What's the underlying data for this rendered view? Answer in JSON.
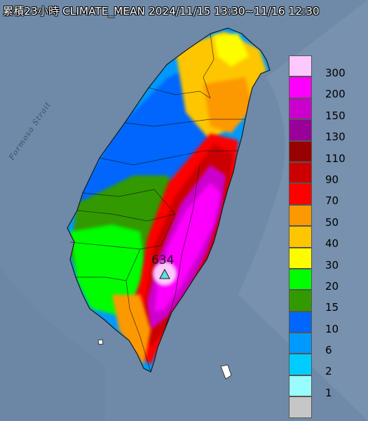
{
  "title": "累積23小時 CLIMATE_MEAN 2024/11/15 13:30~11/16 12:30",
  "sea_label": "Formosa Strait",
  "peak": {
    "value": "634",
    "marker": "triangle-marker"
  },
  "legend": {
    "unit": "",
    "items": [
      {
        "label": "300",
        "color": "#fdc8fd"
      },
      {
        "label": "200",
        "color": "#fd00fd"
      },
      {
        "label": "150",
        "color": "#cc00cc"
      },
      {
        "label": "130",
        "color": "#990099"
      },
      {
        "label": "110",
        "color": "#990000"
      },
      {
        "label": "90",
        "color": "#cc0000"
      },
      {
        "label": "70",
        "color": "#fd0000"
      },
      {
        "label": "50",
        "color": "#fd9900"
      },
      {
        "label": "40",
        "color": "#fdc600"
      },
      {
        "label": "30",
        "color": "#fdfd00"
      },
      {
        "label": "20",
        "color": "#00fd00"
      },
      {
        "label": "15",
        "color": "#339900"
      },
      {
        "label": "10",
        "color": "#0066fd"
      },
      {
        "label": "6",
        "color": "#0099fd"
      },
      {
        "label": "2",
        "color": "#00ccfd"
      },
      {
        "label": "1",
        "color": "#99fdfd"
      },
      {
        "label": "",
        "color": "#c6c6c6"
      }
    ]
  },
  "colors": {
    "sea": "#6f8aa8",
    "border": "#1a1a1a"
  }
}
